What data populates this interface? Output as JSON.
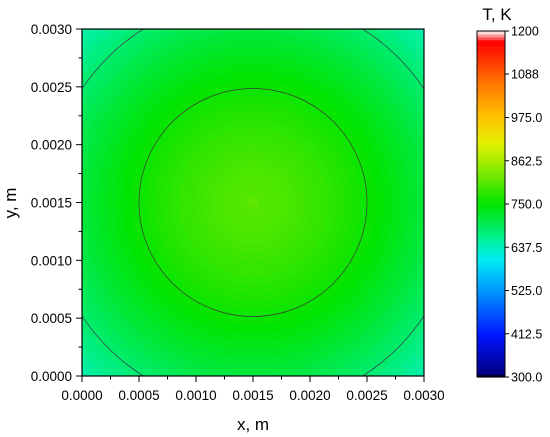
{
  "chart_data": {
    "type": "heatmap",
    "xlabel": "x, m",
    "ylabel": "y, m",
    "xlim": [
      0,
      0.003
    ],
    "ylim": [
      0,
      0.003
    ],
    "x_ticks": [
      "0.0000",
      "0.0005",
      "0.0010",
      "0.0015",
      "0.0020",
      "0.0025",
      "0.0030"
    ],
    "y_ticks": [
      "0.0000",
      "0.0005",
      "0.0010",
      "0.0015",
      "0.0020",
      "0.0025",
      "0.0030"
    ],
    "colorbar": {
      "title": "T, K",
      "range": [
        300,
        1200
      ],
      "tick_labels": [
        "300.0",
        "412.5",
        "525.0",
        "637.5",
        "750.0",
        "862.5",
        "975.0",
        "1088",
        "1200"
      ],
      "tick_values": [
        300,
        412.5,
        525,
        637.5,
        750,
        862.5,
        975,
        1088,
        1200
      ]
    },
    "field": {
      "center": [
        0.0015,
        0.0015
      ],
      "value_at_center": 805,
      "value_at_corner": 650,
      "profile": "radially decreasing from center"
    },
    "contour_circles": [
      {
        "center": [
          0.0015,
          0.0015
        ],
        "radius": 0.001,
        "temperature": 750
      },
      {
        "center": [
          0.0015,
          0.0015
        ],
        "radius": 0.0018,
        "temperature": 700
      }
    ]
  }
}
